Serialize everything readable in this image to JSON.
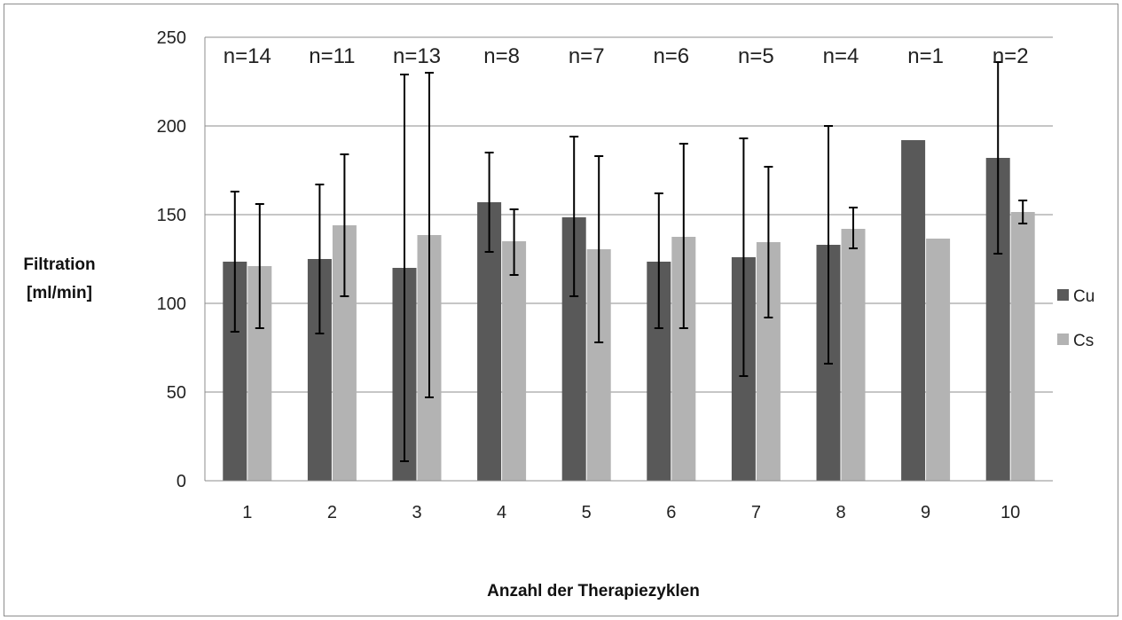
{
  "chart_data": {
    "type": "bar",
    "title": "",
    "xlabel": "Anzahl der Therapiezyklen",
    "ylabel_lines": [
      "Filtration",
      "[ml/min]"
    ],
    "ylim": [
      0,
      250
    ],
    "yticks": [
      0,
      50,
      100,
      150,
      200,
      250
    ],
    "grid": true,
    "legend_position": "right",
    "categories": [
      "1",
      "2",
      "3",
      "4",
      "5",
      "6",
      "7",
      "8",
      "9",
      "10"
    ],
    "annotations": [
      "n=14",
      "n=11",
      "n=13",
      "n=8",
      "n=7",
      "n=6",
      "n=5",
      "n=4",
      "n=1",
      "n=2"
    ],
    "series": [
      {
        "name": "Cu",
        "color": "#595959",
        "values": [
          123.5,
          125,
          120,
          157,
          148.5,
          123.5,
          126,
          133,
          192,
          182
        ],
        "error_low": [
          84,
          83,
          11,
          129,
          104,
          86,
          59,
          66,
          null,
          128
        ],
        "error_high": [
          163,
          167,
          229,
          185,
          194,
          162,
          193,
          200,
          null,
          236
        ]
      },
      {
        "name": "Cs",
        "color": "#b3b3b3",
        "values": [
          121,
          144,
          138.5,
          135,
          130.5,
          137.5,
          134.5,
          142,
          136.5,
          151.5
        ],
        "error_low": [
          86,
          104,
          47,
          116,
          78,
          86,
          92,
          131,
          null,
          145
        ],
        "error_high": [
          156,
          184,
          230,
          153,
          183,
          190,
          177,
          154,
          null,
          158
        ]
      }
    ]
  }
}
